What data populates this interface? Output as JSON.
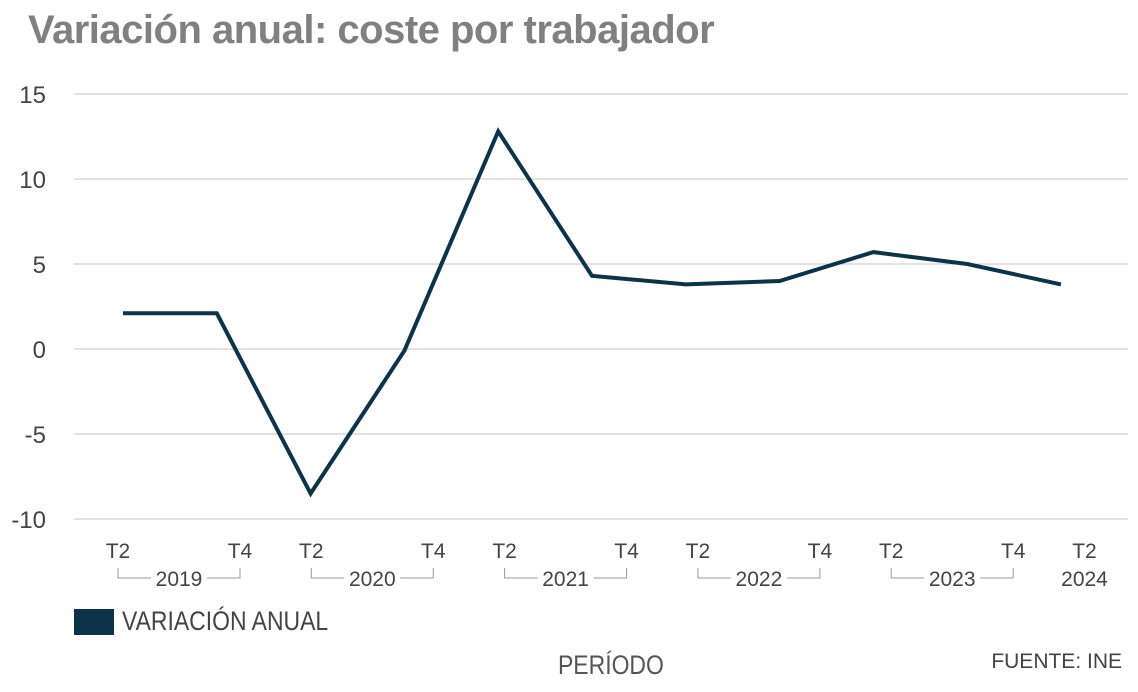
{
  "title": "Variación anual: coste por trabajador",
  "chart_data": {
    "type": "line",
    "title": "Variación anual: coste por trabajador",
    "xlabel": "PERÍODO",
    "ylabel": "",
    "ylim": [
      -10,
      15
    ],
    "yticks": [
      15,
      10,
      5,
      0,
      -5,
      -10
    ],
    "grid": true,
    "legend": "bottom-left",
    "x": [
      "2019 T2",
      "2019 T4",
      "2020 T2",
      "2020 T4",
      "2021 T2",
      "2021 T4",
      "2022 T2",
      "2022 T4",
      "2023 T2",
      "2023 T4",
      "2024 T2"
    ],
    "series": [
      {
        "name": "VARIACIÓN ANUAL",
        "color": "#0d3349",
        "values": [
          2.1,
          2.1,
          -8.5,
          -0.1,
          12.8,
          4.3,
          3.8,
          4.0,
          5.7,
          5.0,
          3.8
        ]
      }
    ],
    "x_groups": [
      {
        "year": "2019",
        "labels": [
          "T2",
          "T4"
        ]
      },
      {
        "year": "2020",
        "labels": [
          "T2",
          "T4"
        ]
      },
      {
        "year": "2021",
        "labels": [
          "T2",
          "T4"
        ]
      },
      {
        "year": "2022",
        "labels": [
          "T2",
          "T4"
        ]
      },
      {
        "year": "2023",
        "labels": [
          "T2",
          "T4"
        ]
      },
      {
        "year": "2024",
        "labels": [
          "T2"
        ]
      }
    ]
  },
  "source": "FUENTE: INE"
}
